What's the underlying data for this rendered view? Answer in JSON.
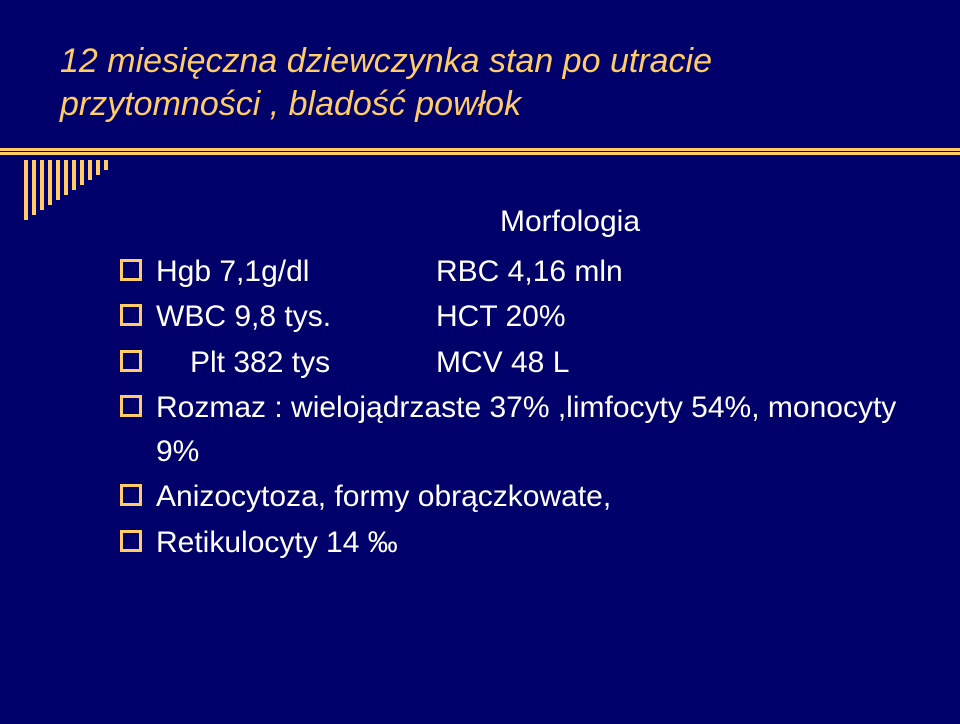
{
  "slide": {
    "background_color": "#00006a",
    "accent_color": "#ffcc66",
    "text_color": "#ffffff",
    "title_fontsize": 34,
    "body_fontsize": 30
  },
  "title": {
    "line1": "12 miesięczna dziewczynka stan po utracie",
    "line2": "przytomności , bladość powłok"
  },
  "bars": {
    "heights": [
      60,
      55,
      50,
      45,
      40,
      35,
      30,
      25,
      20,
      15,
      10
    ]
  },
  "morfologia_label": "Morfologia",
  "items": [
    {
      "col1": "Hgb  7,1g/dl",
      "col2": "RBC 4,16 mln"
    },
    {
      "col1": "WBC  9,8 tys.",
      "col2": "HCT 20%"
    },
    {
      "col1": "  Plt 382 tys",
      "col2": "MCV  48 L",
      "indent": true
    },
    {
      "text": "Rozmaz : wielojądrzaste 37% ,limfocyty 54%, monocyty 9%"
    },
    {
      "text": "Anizocytoza, formy obrączkowate,"
    },
    {
      "text": "Retikulocyty  14 ‰"
    }
  ]
}
